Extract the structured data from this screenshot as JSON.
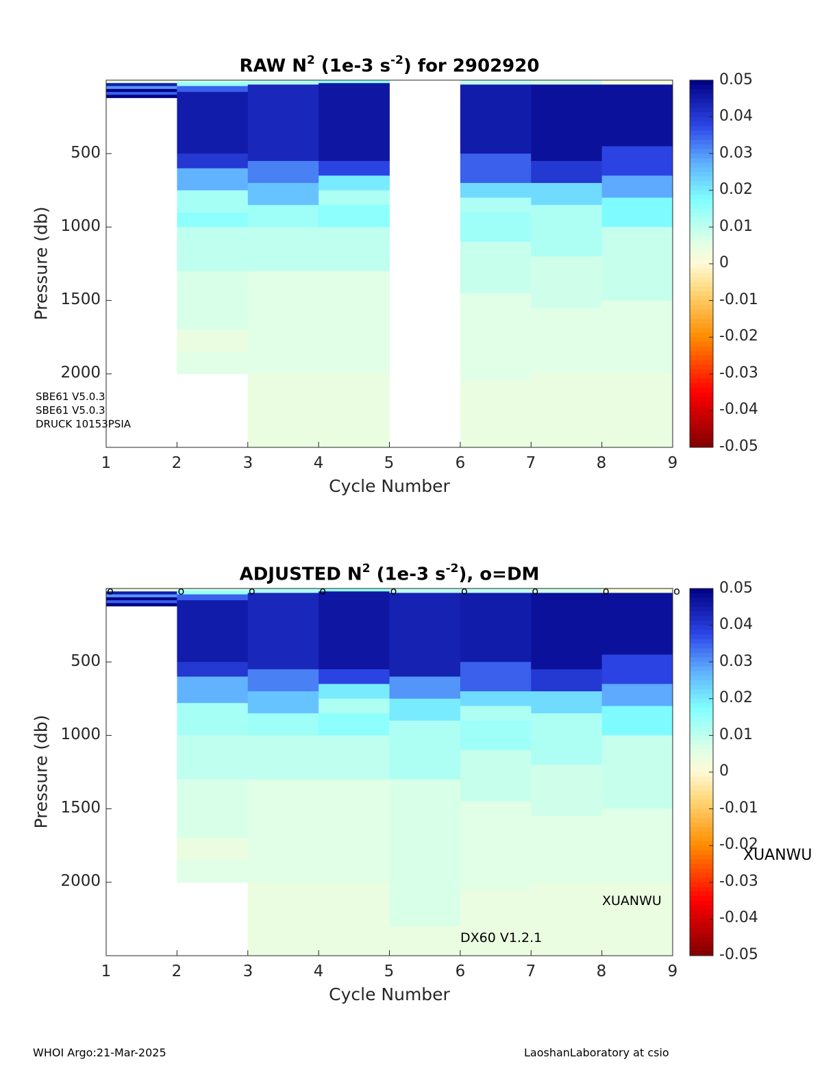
{
  "footer": {
    "left": "WHOI Argo:21-Mar-2025",
    "right": "LaoshanLaboratory at csio"
  },
  "chart_data": [
    {
      "type": "heatmap",
      "title": {
        "prefix": "RAW N",
        "sup1": "2",
        "mid": " (1e-3 s",
        "sup2": "-2",
        "suffix": ") for 2902920"
      },
      "xlabel": "Cycle Number",
      "ylabel": "Pressure (db)",
      "xlim": [
        1,
        9
      ],
      "ylim": [
        2500,
        0
      ],
      "xticks": [
        "1",
        "2",
        "3",
        "4",
        "5",
        "6",
        "7",
        "8",
        "9"
      ],
      "yticks": [
        "500",
        "1000",
        "1500",
        "2000"
      ],
      "colorbar": {
        "min": -0.05,
        "max": 0.05,
        "ticks": [
          "0.05",
          "0.04",
          "0.03",
          "0.02",
          "0.01",
          "0",
          "-0.01",
          "-0.02",
          "-0.03",
          "-0.04",
          "-0.05"
        ]
      },
      "sensor_notes": [
        "SBE61 V5.0.3",
        "SBE61 V5.0.3",
        "DRUCK 10153PSIA"
      ],
      "dm_markers": [],
      "annotations": [],
      "profiles": [
        {
          "cycle": 1,
          "max_pressure": 120,
          "layers": [
            [
              0,
              20,
              0.004
            ],
            [
              20,
              40,
              0.045
            ],
            [
              40,
              60,
              0.03
            ],
            [
              60,
              80,
              0.05
            ],
            [
              80,
              100,
              0.035
            ],
            [
              100,
              120,
              0.05
            ]
          ]
        },
        {
          "cycle": 2,
          "max_pressure": 2000,
          "layers": [
            [
              0,
              15,
              0.008
            ],
            [
              15,
              40,
              0.015
            ],
            [
              40,
              80,
              0.035
            ],
            [
              80,
              500,
              0.045
            ],
            [
              500,
              600,
              0.04
            ],
            [
              600,
              750,
              0.027
            ],
            [
              750,
              900,
              0.013
            ],
            [
              900,
              1000,
              0.016
            ],
            [
              1000,
              1300,
              0.01
            ],
            [
              1300,
              1700,
              0.007
            ],
            [
              1700,
              1850,
              0.004
            ],
            [
              1850,
              2000,
              0.006
            ]
          ]
        },
        {
          "cycle": 3,
          "max_pressure": 2500,
          "layers": [
            [
              0,
              30,
              0.012
            ],
            [
              30,
              550,
              0.043
            ],
            [
              550,
              700,
              0.032
            ],
            [
              700,
              850,
              0.025
            ],
            [
              850,
              1000,
              0.014
            ],
            [
              1000,
              1300,
              0.01
            ],
            [
              1300,
              2000,
              0.006
            ],
            [
              2000,
              2500,
              0.004
            ]
          ]
        },
        {
          "cycle": 4,
          "max_pressure": 2500,
          "layers": [
            [
              0,
              20,
              0.015
            ],
            [
              20,
              550,
              0.046
            ],
            [
              550,
              650,
              0.038
            ],
            [
              650,
              750,
              0.02
            ],
            [
              750,
              850,
              0.012
            ],
            [
              850,
              1000,
              0.016
            ],
            [
              1000,
              1300,
              0.01
            ],
            [
              1300,
              2000,
              0.006
            ],
            [
              2000,
              2500,
              0.004
            ]
          ]
        },
        {
          "cycle": 5,
          "max_pressure": 0,
          "layers": []
        },
        {
          "cycle": 6,
          "max_pressure": 2500,
          "layers": [
            [
              0,
              30,
              0.01
            ],
            [
              30,
              500,
              0.045
            ],
            [
              500,
              700,
              0.035
            ],
            [
              700,
              800,
              0.022
            ],
            [
              800,
              900,
              0.012
            ],
            [
              900,
              1100,
              0.014
            ],
            [
              1100,
              1450,
              0.009
            ],
            [
              1450,
              2050,
              0.006
            ],
            [
              2050,
              2500,
              0.004
            ]
          ]
        },
        {
          "cycle": 7,
          "max_pressure": 2500,
          "layers": [
            [
              0,
              30,
              0.008
            ],
            [
              30,
              550,
              0.047
            ],
            [
              550,
              700,
              0.04
            ],
            [
              700,
              850,
              0.022
            ],
            [
              850,
              1200,
              0.012
            ],
            [
              1200,
              1550,
              0.008
            ],
            [
              1550,
              2000,
              0.006
            ],
            [
              2000,
              2500,
              0.004
            ]
          ]
        },
        {
          "cycle": 8,
          "max_pressure": 2500,
          "layers": [
            [
              0,
              30,
              0.002
            ],
            [
              30,
              450,
              0.047
            ],
            [
              450,
              650,
              0.038
            ],
            [
              650,
              800,
              0.028
            ],
            [
              800,
              1000,
              0.018
            ],
            [
              1000,
              1500,
              0.009
            ],
            [
              1500,
              2000,
              0.006
            ],
            [
              2000,
              2500,
              0.004
            ]
          ]
        }
      ]
    },
    {
      "type": "heatmap",
      "title": {
        "prefix": "ADJUSTED N",
        "sup1": "2",
        "mid": " (1e-3 s",
        "sup2": "-2",
        "suffix": "), o=DM"
      },
      "xlabel": "Cycle Number",
      "ylabel": "Pressure (db)",
      "xlim": [
        1,
        9
      ],
      "ylim": [
        2500,
        0
      ],
      "xticks": [
        "1",
        "2",
        "3",
        "4",
        "5",
        "6",
        "7",
        "8",
        "9"
      ],
      "yticks": [
        "500",
        "1000",
        "1500",
        "2000"
      ],
      "colorbar": {
        "min": -0.05,
        "max": 0.05,
        "ticks": [
          "0.05",
          "0.04",
          "0.03",
          "0.02",
          "0.01",
          "0",
          "-0.01",
          "-0.02",
          "-0.03",
          "-0.04",
          "-0.05"
        ]
      },
      "sensor_notes": [],
      "dm_markers": {
        "symbol": "o",
        "cycles": [
          1,
          2,
          3,
          4,
          5,
          6,
          7,
          8,
          9
        ]
      },
      "annotations": {
        "float_name": "XUANWU",
        "float_name_edge": "XUANWU",
        "firmware": "DX60 V1.2.1"
      },
      "profiles": [
        {
          "cycle": 1,
          "max_pressure": 120,
          "layers": [
            [
              0,
              20,
              0.004
            ],
            [
              20,
              40,
              0.045
            ],
            [
              40,
              60,
              0.03
            ],
            [
              60,
              80,
              0.05
            ],
            [
              80,
              100,
              0.035
            ],
            [
              100,
              120,
              0.05
            ]
          ]
        },
        {
          "cycle": 2,
          "max_pressure": 2000,
          "layers": [
            [
              0,
              15,
              0.008
            ],
            [
              15,
              40,
              0.015
            ],
            [
              40,
              80,
              0.035
            ],
            [
              80,
              500,
              0.045
            ],
            [
              500,
              600,
              0.04
            ],
            [
              600,
              780,
              0.027
            ],
            [
              780,
              1000,
              0.013
            ],
            [
              1000,
              1300,
              0.01
            ],
            [
              1300,
              1700,
              0.007
            ],
            [
              1700,
              1850,
              0.004
            ],
            [
              1850,
              2000,
              0.006
            ]
          ]
        },
        {
          "cycle": 3,
          "max_pressure": 2500,
          "layers": [
            [
              0,
              30,
              0.012
            ],
            [
              30,
              550,
              0.043
            ],
            [
              550,
              700,
              0.032
            ],
            [
              700,
              850,
              0.025
            ],
            [
              850,
              1000,
              0.014
            ],
            [
              1000,
              1300,
              0.01
            ],
            [
              1300,
              2000,
              0.006
            ],
            [
              2000,
              2500,
              0.004
            ]
          ]
        },
        {
          "cycle": 4,
          "max_pressure": 2500,
          "layers": [
            [
              0,
              20,
              0.015
            ],
            [
              20,
              550,
              0.046
            ],
            [
              550,
              650,
              0.038
            ],
            [
              650,
              750,
              0.02
            ],
            [
              750,
              850,
              0.012
            ],
            [
              850,
              1000,
              0.016
            ],
            [
              1000,
              1300,
              0.01
            ],
            [
              1300,
              2000,
              0.006
            ],
            [
              2000,
              2500,
              0.004
            ]
          ]
        },
        {
          "cycle": 5,
          "max_pressure": 2500,
          "layers": [
            [
              0,
              30,
              0.01
            ],
            [
              30,
              600,
              0.044
            ],
            [
              600,
              750,
              0.03
            ],
            [
              750,
              900,
              0.02
            ],
            [
              900,
              1300,
              0.012
            ],
            [
              1300,
              2300,
              0.007
            ],
            [
              2300,
              2500,
              0.004
            ]
          ]
        },
        {
          "cycle": 6,
          "max_pressure": 2500,
          "layers": [
            [
              0,
              30,
              0.01
            ],
            [
              30,
              500,
              0.045
            ],
            [
              500,
              700,
              0.035
            ],
            [
              700,
              800,
              0.022
            ],
            [
              800,
              900,
              0.012
            ],
            [
              900,
              1100,
              0.014
            ],
            [
              1100,
              1450,
              0.009
            ],
            [
              1450,
              2050,
              0.006
            ],
            [
              2050,
              2500,
              0.004
            ]
          ]
        },
        {
          "cycle": 7,
          "max_pressure": 2500,
          "layers": [
            [
              0,
              30,
              0.008
            ],
            [
              30,
              550,
              0.047
            ],
            [
              550,
              700,
              0.04
            ],
            [
              700,
              850,
              0.022
            ],
            [
              850,
              1200,
              0.012
            ],
            [
              1200,
              1550,
              0.008
            ],
            [
              1550,
              2000,
              0.006
            ],
            [
              2000,
              2500,
              0.004
            ]
          ]
        },
        {
          "cycle": 8,
          "max_pressure": 2500,
          "layers": [
            [
              0,
              30,
              0.002
            ],
            [
              30,
              450,
              0.047
            ],
            [
              450,
              650,
              0.038
            ],
            [
              650,
              800,
              0.028
            ],
            [
              800,
              1000,
              0.018
            ],
            [
              1000,
              1500,
              0.009
            ],
            [
              1500,
              2000,
              0.006
            ],
            [
              2000,
              2500,
              0.004
            ]
          ]
        }
      ]
    }
  ]
}
